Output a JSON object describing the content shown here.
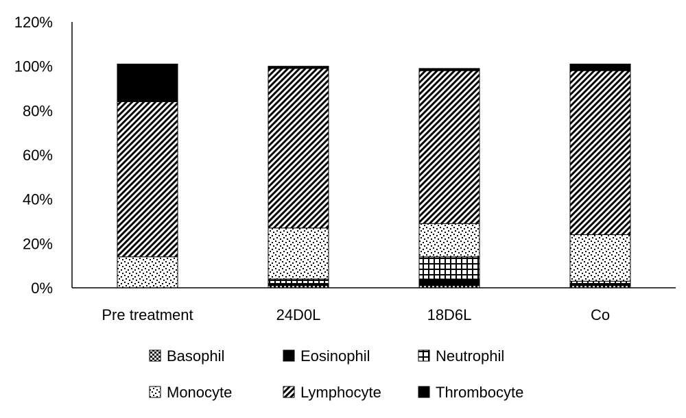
{
  "chart_data": {
    "type": "bar",
    "stacked": true,
    "categories": [
      "Pre treatment",
      "24D0L",
      "18D6L",
      "Co"
    ],
    "series": [
      {
        "name": "Basophil",
        "pattern": "checker",
        "values": [
          0,
          1,
          1,
          1
        ]
      },
      {
        "name": "Eosinophil",
        "pattern": "solid",
        "values": [
          0,
          1,
          3,
          1
        ]
      },
      {
        "name": "Neutrophil",
        "pattern": "grid",
        "values": [
          0,
          2,
          10,
          1
        ]
      },
      {
        "name": "Monocyte",
        "pattern": "dots",
        "values": [
          14,
          23,
          15,
          21
        ]
      },
      {
        "name": "Lymphocyte",
        "pattern": "diagonal",
        "values": [
          70,
          72,
          69,
          74
        ]
      },
      {
        "name": "Thrombocyte",
        "pattern": "solid",
        "values": [
          17,
          1,
          1,
          3
        ]
      }
    ],
    "ylim": [
      0,
      120
    ],
    "yticks": [
      0,
      20,
      40,
      60,
      80,
      100,
      120
    ],
    "ytick_format": "{v}%",
    "grid": false,
    "legend_position": "bottom",
    "colors": {
      "ink": "#000000",
      "background": "#ffffff"
    }
  }
}
